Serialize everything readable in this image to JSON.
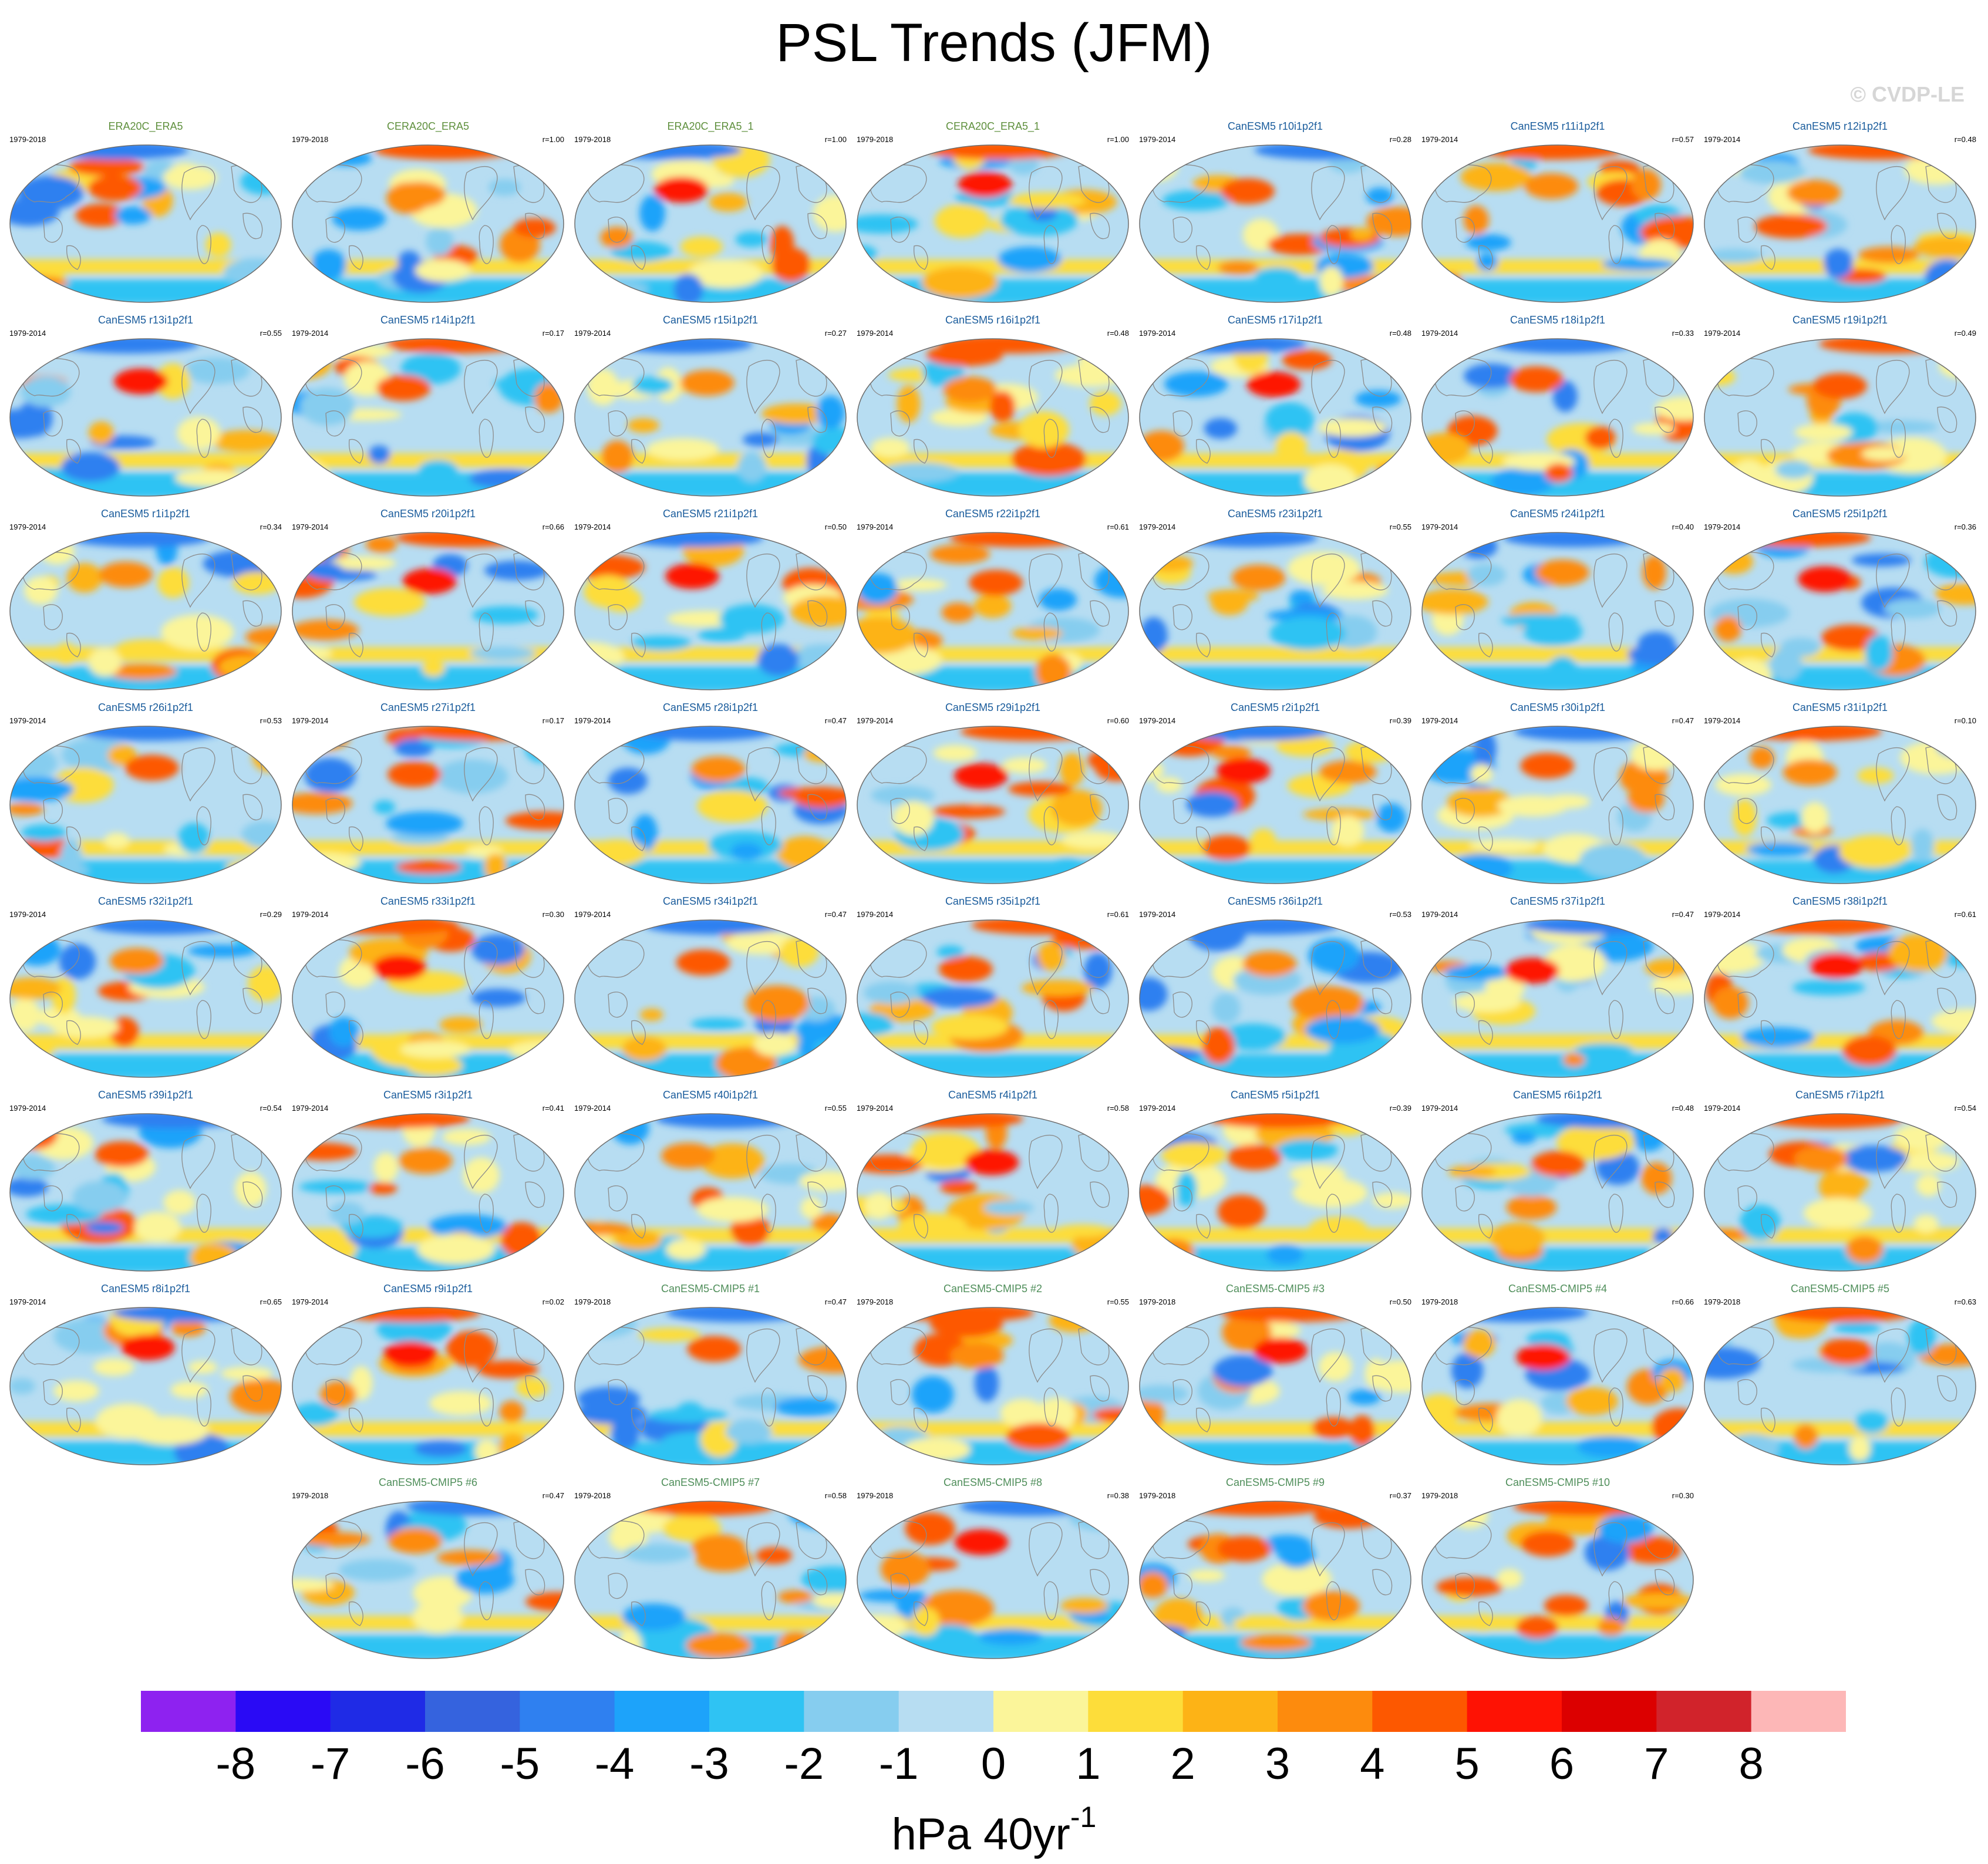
{
  "title": "PSL Trends (JFM)",
  "copyright": "© CVDP-LE",
  "chart_data": {
    "type": "heatmap",
    "variable": "PSL",
    "season": "JFM",
    "projection": "Robinson (global, Pacific-centered)",
    "units": "hPa 40yr",
    "units_exponent": "-1",
    "colorbar": {
      "levels": [
        -8,
        -7,
        -6,
        -5,
        -4,
        -3,
        -2,
        -1,
        0,
        1,
        2,
        3,
        4,
        5,
        6,
        7,
        8
      ],
      "tick_labels": [
        "-8",
        "-7",
        "-6",
        "-5",
        "-4",
        "-3",
        "-2",
        "-1",
        "0",
        "1",
        "2",
        "3",
        "4",
        "5",
        "6",
        "7",
        "8"
      ],
      "colors": [
        "#8e22f0",
        "#2a0af5",
        "#1f2be6",
        "#3563de",
        "#2f80f0",
        "#1da3fa",
        "#2fc3f3",
        "#86cdef",
        "#b7ddf2",
        "#fbf59a",
        "#fddd3a",
        "#fdb316",
        "#fd8b0d",
        "#fd5800",
        "#fe1204",
        "#dc0000",
        "#d1232b",
        "#fdb7b7"
      ]
    },
    "panels": [
      {
        "name": "ERA20C_ERA5",
        "period": "1979-2018",
        "r": "",
        "kind": "obs"
      },
      {
        "name": "CERA20C_ERA5",
        "period": "1979-2018",
        "r": "r=1.00",
        "kind": "obs"
      },
      {
        "name": "ERA20C_ERA5_1",
        "period": "1979-2018",
        "r": "r=1.00",
        "kind": "obs"
      },
      {
        "name": "CERA20C_ERA5_1",
        "period": "1979-2018",
        "r": "r=1.00",
        "kind": "obs"
      },
      {
        "name": "CanESM5 r10i1p2f1",
        "period": "1979-2014",
        "r": "r=0.28",
        "kind": "mod"
      },
      {
        "name": "CanESM5 r11i1p2f1",
        "period": "1979-2014",
        "r": "r=0.57",
        "kind": "mod"
      },
      {
        "name": "CanESM5 r12i1p2f1",
        "period": "1979-2014",
        "r": "r=0.48",
        "kind": "mod"
      },
      {
        "name": "CanESM5 r13i1p2f1",
        "period": "1979-2014",
        "r": "r=0.55",
        "kind": "mod"
      },
      {
        "name": "CanESM5 r14i1p2f1",
        "period": "1979-2014",
        "r": "r=0.17",
        "kind": "mod"
      },
      {
        "name": "CanESM5 r15i1p2f1",
        "period": "1979-2014",
        "r": "r=0.27",
        "kind": "mod"
      },
      {
        "name": "CanESM5 r16i1p2f1",
        "period": "1979-2014",
        "r": "r=0.48",
        "kind": "mod"
      },
      {
        "name": "CanESM5 r17i1p2f1",
        "period": "1979-2014",
        "r": "r=0.48",
        "kind": "mod"
      },
      {
        "name": "CanESM5 r18i1p2f1",
        "period": "1979-2014",
        "r": "r=0.33",
        "kind": "mod"
      },
      {
        "name": "CanESM5 r19i1p2f1",
        "period": "1979-2014",
        "r": "r=0.49",
        "kind": "mod"
      },
      {
        "name": "CanESM5 r1i1p2f1",
        "period": "1979-2014",
        "r": "r=0.34",
        "kind": "mod"
      },
      {
        "name": "CanESM5 r20i1p2f1",
        "period": "1979-2014",
        "r": "r=0.66",
        "kind": "mod"
      },
      {
        "name": "CanESM5 r21i1p2f1",
        "period": "1979-2014",
        "r": "r=0.50",
        "kind": "mod"
      },
      {
        "name": "CanESM5 r22i1p2f1",
        "period": "1979-2014",
        "r": "r=0.61",
        "kind": "mod"
      },
      {
        "name": "CanESM5 r23i1p2f1",
        "period": "1979-2014",
        "r": "r=0.55",
        "kind": "mod"
      },
      {
        "name": "CanESM5 r24i1p2f1",
        "period": "1979-2014",
        "r": "r=0.40",
        "kind": "mod"
      },
      {
        "name": "CanESM5 r25i1p2f1",
        "period": "1979-2014",
        "r": "r=0.36",
        "kind": "mod"
      },
      {
        "name": "CanESM5 r26i1p2f1",
        "period": "1979-2014",
        "r": "r=0.53",
        "kind": "mod"
      },
      {
        "name": "CanESM5 r27i1p2f1",
        "period": "1979-2014",
        "r": "r=0.17",
        "kind": "mod"
      },
      {
        "name": "CanESM5 r28i1p2f1",
        "period": "1979-2014",
        "r": "r=0.47",
        "kind": "mod"
      },
      {
        "name": "CanESM5 r29i1p2f1",
        "period": "1979-2014",
        "r": "r=0.60",
        "kind": "mod"
      },
      {
        "name": "CanESM5 r2i1p2f1",
        "period": "1979-2014",
        "r": "r=0.39",
        "kind": "mod"
      },
      {
        "name": "CanESM5 r30i1p2f1",
        "period": "1979-2014",
        "r": "r=0.47",
        "kind": "mod"
      },
      {
        "name": "CanESM5 r31i1p2f1",
        "period": "1979-2014",
        "r": "r=0.10",
        "kind": "mod"
      },
      {
        "name": "CanESM5 r32i1p2f1",
        "period": "1979-2014",
        "r": "r=0.29",
        "kind": "mod"
      },
      {
        "name": "CanESM5 r33i1p2f1",
        "period": "1979-2014",
        "r": "r=0.30",
        "kind": "mod"
      },
      {
        "name": "CanESM5 r34i1p2f1",
        "period": "1979-2014",
        "r": "r=0.47",
        "kind": "mod"
      },
      {
        "name": "CanESM5 r35i1p2f1",
        "period": "1979-2014",
        "r": "r=0.61",
        "kind": "mod"
      },
      {
        "name": "CanESM5 r36i1p2f1",
        "period": "1979-2014",
        "r": "r=0.53",
        "kind": "mod"
      },
      {
        "name": "CanESM5 r37i1p2f1",
        "period": "1979-2014",
        "r": "r=0.47",
        "kind": "mod"
      },
      {
        "name": "CanESM5 r38i1p2f1",
        "period": "1979-2014",
        "r": "r=0.61",
        "kind": "mod"
      },
      {
        "name": "CanESM5 r39i1p2f1",
        "period": "1979-2014",
        "r": "r=0.54",
        "kind": "mod"
      },
      {
        "name": "CanESM5 r3i1p2f1",
        "period": "1979-2014",
        "r": "r=0.41",
        "kind": "mod"
      },
      {
        "name": "CanESM5 r40i1p2f1",
        "period": "1979-2014",
        "r": "r=0.55",
        "kind": "mod"
      },
      {
        "name": "CanESM5 r4i1p2f1",
        "period": "1979-2014",
        "r": "r=0.58",
        "kind": "mod"
      },
      {
        "name": "CanESM5 r5i1p2f1",
        "period": "1979-2014",
        "r": "r=0.39",
        "kind": "mod"
      },
      {
        "name": "CanESM5 r6i1p2f1",
        "period": "1979-2014",
        "r": "r=0.48",
        "kind": "mod"
      },
      {
        "name": "CanESM5 r7i1p2f1",
        "period": "1979-2014",
        "r": "r=0.54",
        "kind": "mod"
      },
      {
        "name": "CanESM5 r8i1p2f1",
        "period": "1979-2014",
        "r": "r=0.65",
        "kind": "mod"
      },
      {
        "name": "CanESM5 r9i1p2f1",
        "period": "1979-2014",
        "r": "r=0.02",
        "kind": "mod"
      },
      {
        "name": "CanESM5-CMIP5 #1",
        "period": "1979-2018",
        "r": "r=0.47",
        "kind": "cmip"
      },
      {
        "name": "CanESM5-CMIP5 #2",
        "period": "1979-2018",
        "r": "r=0.55",
        "kind": "cmip"
      },
      {
        "name": "CanESM5-CMIP5 #3",
        "period": "1979-2018",
        "r": "r=0.50",
        "kind": "cmip"
      },
      {
        "name": "CanESM5-CMIP5 #4",
        "period": "1979-2018",
        "r": "r=0.66",
        "kind": "cmip"
      },
      {
        "name": "CanESM5-CMIP5 #5",
        "period": "1979-2018",
        "r": "r=0.63",
        "kind": "cmip"
      },
      {
        "name": "CanESM5-CMIP5 #6",
        "period": "1979-2018",
        "r": "r=0.47",
        "kind": "cmip"
      },
      {
        "name": "CanESM5-CMIP5 #7",
        "period": "1979-2018",
        "r": "r=0.58",
        "kind": "cmip"
      },
      {
        "name": "CanESM5-CMIP5 #8",
        "period": "1979-2018",
        "r": "r=0.38",
        "kind": "cmip"
      },
      {
        "name": "CanESM5-CMIP5 #9",
        "period": "1979-2018",
        "r": "r=0.37",
        "kind": "cmip"
      },
      {
        "name": "CanESM5-CMIP5 #10",
        "period": "1979-2018",
        "r": "r=0.30",
        "kind": "cmip"
      }
    ]
  }
}
